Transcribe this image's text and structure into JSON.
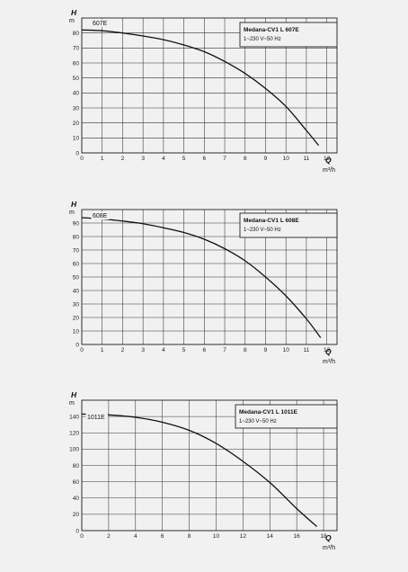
{
  "chart_data": [
    {
      "type": "line",
      "title": "Medana-CV1 L 607E",
      "subtitle": "1~230 V~50 Hz",
      "ylabel_symbol": "H",
      "ylabel_unit": "m",
      "xlabel_symbol": "Q",
      "xlabel_unit": "m³/h",
      "xlim": [
        0,
        12.5
      ],
      "ylim": [
        0,
        90
      ],
      "xticks": [
        0,
        1,
        2,
        3,
        4,
        5,
        6,
        7,
        8,
        9,
        10,
        11,
        12
      ],
      "yticks": [
        0,
        10,
        20,
        30,
        40,
        50,
        60,
        70,
        80
      ],
      "grid": true,
      "legend_position": "top-right",
      "series": [
        {
          "name": "607E",
          "x": [
            0,
            1,
            2,
            3,
            4,
            5,
            6,
            7,
            8,
            9,
            10,
            11,
            11.6
          ],
          "y": [
            82,
            81.5,
            80,
            78,
            75.5,
            72,
            67.5,
            61,
            53,
            43,
            31,
            15,
            5
          ]
        }
      ]
    },
    {
      "type": "line",
      "title": "Medana-CV1 L 608E",
      "subtitle": "1~230 V~50 Hz",
      "ylabel_symbol": "H",
      "ylabel_unit": "m",
      "xlabel_symbol": "Q",
      "xlabel_unit": "m³/h",
      "xlim": [
        0,
        12.5
      ],
      "ylim": [
        0,
        100
      ],
      "xticks": [
        0,
        1,
        2,
        3,
        4,
        5,
        6,
        7,
        8,
        9,
        10,
        11,
        12
      ],
      "yticks": [
        0,
        10,
        20,
        30,
        40,
        50,
        60,
        70,
        80,
        90
      ],
      "grid": true,
      "legend_position": "top-right",
      "series": [
        {
          "name": "608E",
          "x": [
            0,
            1,
            2,
            3,
            4,
            5,
            6,
            7,
            8,
            9,
            10,
            11,
            11.7
          ],
          "y": [
            94,
            93,
            91.5,
            89.5,
            86.5,
            83,
            78,
            71,
            62,
            50,
            36,
            19,
            5
          ]
        }
      ]
    },
    {
      "type": "line",
      "title": "Medana-CV1 L 1011E",
      "subtitle": "1~230 V~50 Hz",
      "ylabel_symbol": "H",
      "ylabel_unit": "m",
      "xlabel_symbol": "Q",
      "xlabel_unit": "m³/h",
      "xlim": [
        0,
        19
      ],
      "ylim": [
        0,
        160
      ],
      "xticks": [
        0,
        2,
        4,
        6,
        8,
        10,
        12,
        14,
        16,
        18
      ],
      "yticks": [
        0,
        20,
        40,
        60,
        80,
        100,
        120,
        140
      ],
      "grid": true,
      "legend_position": "top-right",
      "series": [
        {
          "name": "1011E",
          "x": [
            0,
            2,
            4,
            6,
            8,
            10,
            12,
            14,
            16,
            17.5
          ],
          "y": [
            143,
            142,
            139,
            133,
            123,
            107,
            85,
            59,
            27,
            5
          ]
        }
      ]
    }
  ]
}
